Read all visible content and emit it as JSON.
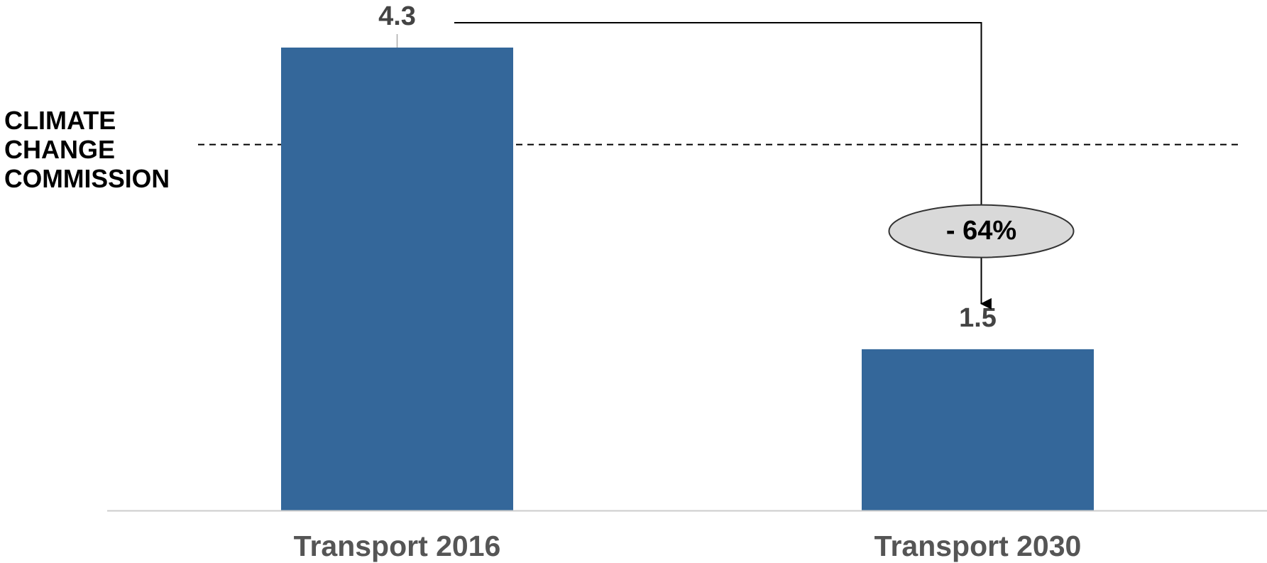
{
  "chart_data": {
    "type": "bar",
    "categories": [
      "Transport 2016",
      "Transport 2030"
    ],
    "values": [
      4.3,
      1.5
    ],
    "color": "#34679a",
    "ylim": [
      0,
      4.3
    ],
    "reference_line": {
      "value": 3.4,
      "label_lines": [
        "CLIMATE",
        "CHANGE",
        "COMMISSION"
      ]
    },
    "annotation": {
      "text": "- 64%",
      "from": 0,
      "to": 1
    }
  }
}
